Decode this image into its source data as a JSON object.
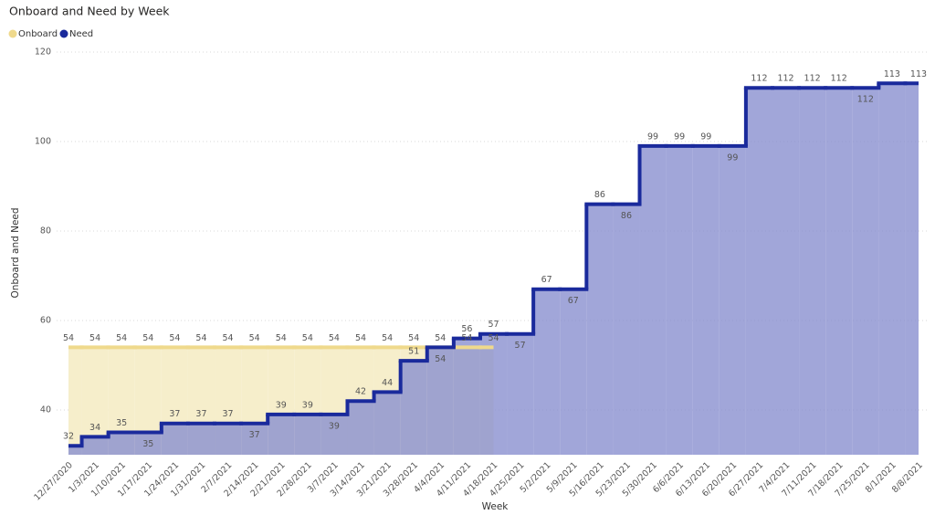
{
  "chart_data": {
    "type": "step-area",
    "title": "Onboard and Need by Week",
    "x_label": "Week",
    "y_label": "Onboard and Need",
    "categories": [
      "12/27/2020",
      "1/3/2021",
      "1/10/2021",
      "1/17/2021",
      "1/24/2021",
      "1/31/2021",
      "2/7/2021",
      "2/14/2021",
      "2/21/2021",
      "2/28/2021",
      "3/7/2021",
      "3/14/2021",
      "3/21/2021",
      "3/28/2021",
      "4/4/2021",
      "4/11/2021",
      "4/18/2021",
      "4/25/2021",
      "5/2/2021",
      "5/9/2021",
      "5/16/2021",
      "5/23/2021",
      "5/30/2021",
      "6/6/2021",
      "6/13/2021",
      "6/20/2021",
      "6/27/2021",
      "7/4/2021",
      "7/11/2021",
      "7/18/2021",
      "7/25/2021",
      "8/1/2021",
      "8/8/2021"
    ],
    "series": [
      {
        "name": "Onboard",
        "color": "#efd98c",
        "fill": "#f6eecb",
        "values": [
          54,
          54,
          54,
          54,
          54,
          54,
          54,
          54,
          54,
          54,
          54,
          54,
          54,
          54,
          54,
          54,
          54,
          null,
          null,
          null,
          null,
          null,
          null,
          null,
          null,
          null,
          null,
          null,
          null,
          null,
          null,
          null,
          null
        ]
      },
      {
        "name": "Need",
        "color": "#1a2a9c",
        "fill": "#8a90d0",
        "values": [
          32,
          34,
          35,
          35,
          37,
          37,
          37,
          37,
          39,
          39,
          39,
          42,
          44,
          51,
          54,
          56,
          57,
          57,
          67,
          67,
          86,
          86,
          99,
          99,
          99,
          99,
          112,
          112,
          112,
          112,
          112,
          113,
          113
        ]
      }
    ],
    "ylim": [
      30,
      120
    ],
    "yticks": [
      40,
      60,
      80,
      100,
      120
    ],
    "grid": true,
    "legend": "top-left"
  }
}
